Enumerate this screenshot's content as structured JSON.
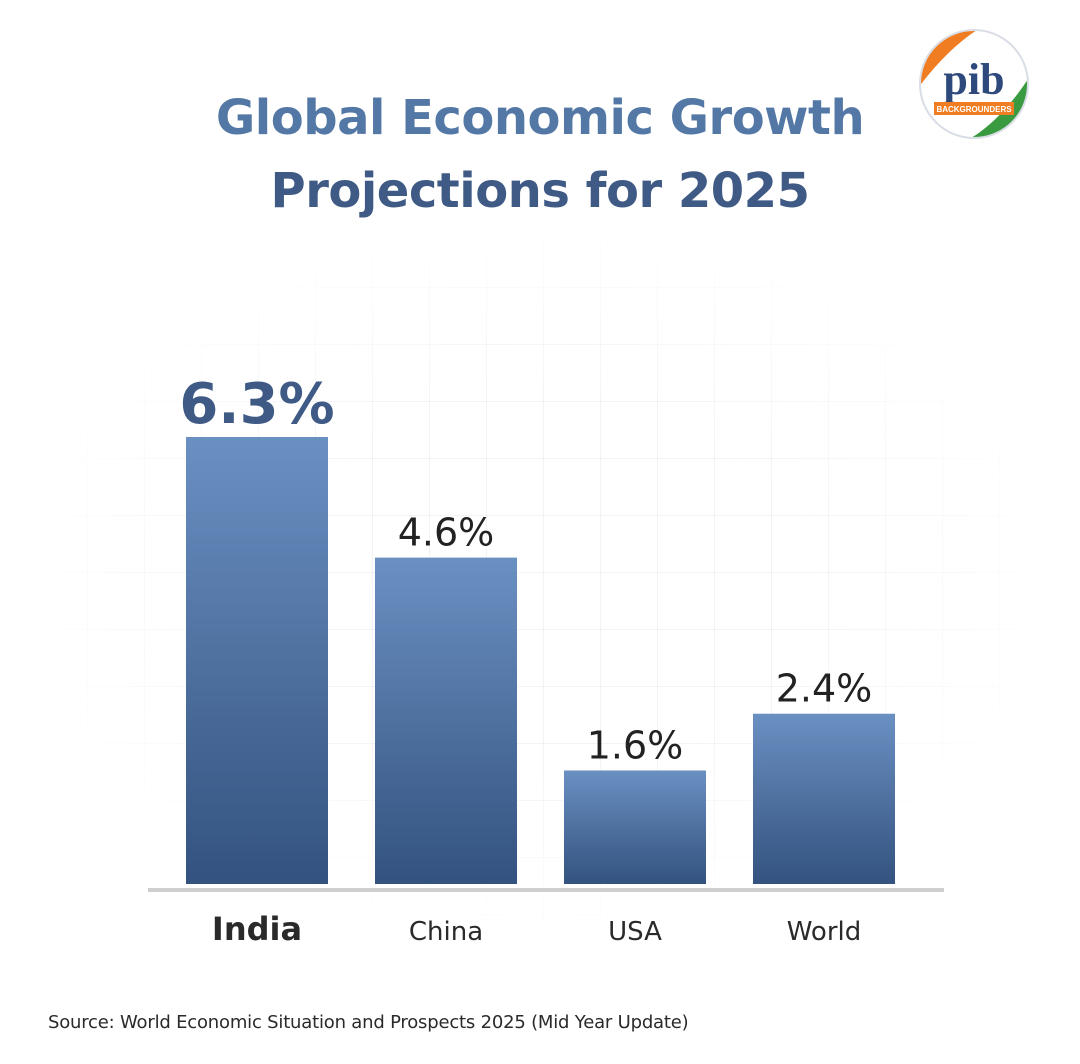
{
  "chart_data": {
    "type": "bar",
    "title_line1": "Global Economic Growth",
    "title_line2": "Projections for 2025",
    "categories": [
      "India",
      "China",
      "USA",
      "World"
    ],
    "values": [
      6.3,
      4.6,
      1.6,
      2.4
    ],
    "value_labels": [
      "6.3%",
      "4.6%",
      "1.6%",
      "2.4%"
    ],
    "highlight": "India",
    "ylim": [
      0,
      6.3
    ],
    "grid": false,
    "xlabel": "",
    "ylabel": "",
    "bar_color_top": "#6a90c2",
    "bar_color_bottom": "#33527f",
    "source": "Source: World Economic Situation and Prospects 2025 (Mid Year Update)"
  },
  "logo": {
    "text": "pib",
    "subtext": "BACKGROUNDERS",
    "colors": {
      "saffron": "#f07d21",
      "green": "#3a9a3f",
      "navy": "#2e4a7d"
    }
  }
}
